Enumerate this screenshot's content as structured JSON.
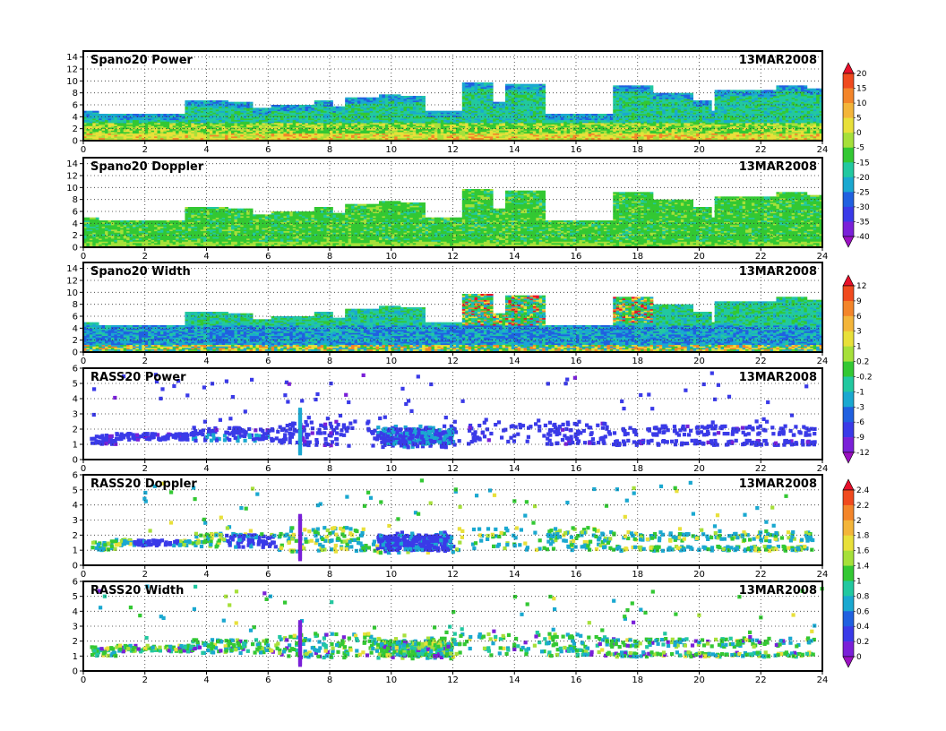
{
  "chart_data": [
    {
      "type": "heatmap",
      "title": "Spano20 Power",
      "date": "13MAR2008",
      "xlim": [
        0,
        24
      ],
      "ylim": [
        0,
        15
      ],
      "xticks": [
        "0",
        "2",
        "4",
        "6",
        "8",
        "10",
        "12",
        "14",
        "16",
        "18",
        "20",
        "22",
        "24"
      ],
      "yticks": [
        "0",
        "2",
        "4",
        "6",
        "8",
        "10",
        "12",
        "14"
      ],
      "grid": true,
      "colorbar": "power"
    },
    {
      "type": "heatmap",
      "title": "Spano20 Doppler",
      "date": "13MAR2008",
      "xlim": [
        0,
        24
      ],
      "ylim": [
        0,
        15
      ],
      "xticks": [
        "0",
        "2",
        "4",
        "6",
        "8",
        "10",
        "12",
        "14",
        "16",
        "18",
        "20",
        "22",
        "24"
      ],
      "yticks": [
        "0",
        "2",
        "4",
        "6",
        "8",
        "10",
        "12",
        "14"
      ],
      "grid": true,
      "colorbar": "power"
    },
    {
      "type": "heatmap",
      "title": "Spano20 Width",
      "date": "13MAR2008",
      "xlim": [
        0,
        24
      ],
      "ylim": [
        0,
        15
      ],
      "xticks": [
        "0",
        "2",
        "4",
        "6",
        "8",
        "10",
        "12",
        "14",
        "16",
        "18",
        "20",
        "22",
        "24"
      ],
      "yticks": [
        "0",
        "2",
        "4",
        "6",
        "8",
        "10",
        "12",
        "14"
      ],
      "grid": true,
      "colorbar": "width"
    },
    {
      "type": "heatmap",
      "title": "RASS20 Power",
      "date": "13MAR2008",
      "xlim": [
        0,
        24
      ],
      "ylim": [
        0,
        6
      ],
      "xticks": [
        "0",
        "2",
        "4",
        "6",
        "8",
        "10",
        "12",
        "14",
        "16",
        "18",
        "20",
        "22",
        "24"
      ],
      "yticks": [
        "0",
        "1",
        "2",
        "3",
        "4",
        "5",
        "6"
      ],
      "grid": true,
      "colorbar": "width"
    },
    {
      "type": "heatmap",
      "title": "RASS20 Doppler",
      "date": "13MAR2008",
      "xlim": [
        0,
        24
      ],
      "ylim": [
        0,
        6
      ],
      "xticks": [
        "0",
        "2",
        "4",
        "6",
        "8",
        "10",
        "12",
        "14",
        "16",
        "18",
        "20",
        "22",
        "24"
      ],
      "yticks": [
        "0",
        "1",
        "2",
        "3",
        "4",
        "5",
        "6"
      ],
      "grid": true,
      "colorbar": "rass"
    },
    {
      "type": "heatmap",
      "title": "RASS20 Width",
      "date": "13MAR2008",
      "xlim": [
        0,
        24
      ],
      "ylim": [
        0,
        6
      ],
      "xticks": [
        "0",
        "2",
        "4",
        "6",
        "8",
        "10",
        "12",
        "14",
        "16",
        "18",
        "20",
        "22",
        "24"
      ],
      "yticks": [
        "0",
        "1",
        "2",
        "3",
        "4",
        "5",
        "6"
      ],
      "grid": true,
      "colorbar": "rass"
    }
  ],
  "colorbars": {
    "power": {
      "labels": [
        "20",
        "15",
        "10",
        "5",
        "0",
        "-5",
        "-15",
        "-20",
        "-25",
        "-30",
        "-35",
        "-40"
      ],
      "colors": [
        "#e8102a",
        "#f04a1e",
        "#f3852a",
        "#f3b53a",
        "#e8e03a",
        "#a6e03a",
        "#33c833",
        "#22c8a0",
        "#1aa8d0",
        "#2060e0",
        "#3a3ae8",
        "#7a20d8",
        "#9a10c0"
      ]
    },
    "width": {
      "labels": [
        "12",
        "9",
        "6",
        "3",
        "1",
        "0.2",
        "-0.2",
        "-1",
        "-3",
        "-6",
        "-9",
        "-12"
      ],
      "colors": [
        "#e8102a",
        "#f04a1e",
        "#f3852a",
        "#f3b53a",
        "#e8e03a",
        "#a6e03a",
        "#33c833",
        "#22c8a0",
        "#1aa8d0",
        "#2060e0",
        "#3a3ae8",
        "#7a20d8",
        "#9a10c0"
      ]
    },
    "rass": {
      "labels": [
        "2.4",
        "2.2",
        "2",
        "1.8",
        "1.6",
        "1.4",
        "1",
        "0.8",
        "0.6",
        "0.4",
        "0.2",
        "0"
      ],
      "colors": [
        "#e8102a",
        "#f04a1e",
        "#f3852a",
        "#f3b53a",
        "#e8e03a",
        "#a6e03a",
        "#33c833",
        "#22c8a0",
        "#1aa8d0",
        "#2060e0",
        "#3a3ae8",
        "#7a20d8",
        "#9a10c0"
      ]
    }
  }
}
